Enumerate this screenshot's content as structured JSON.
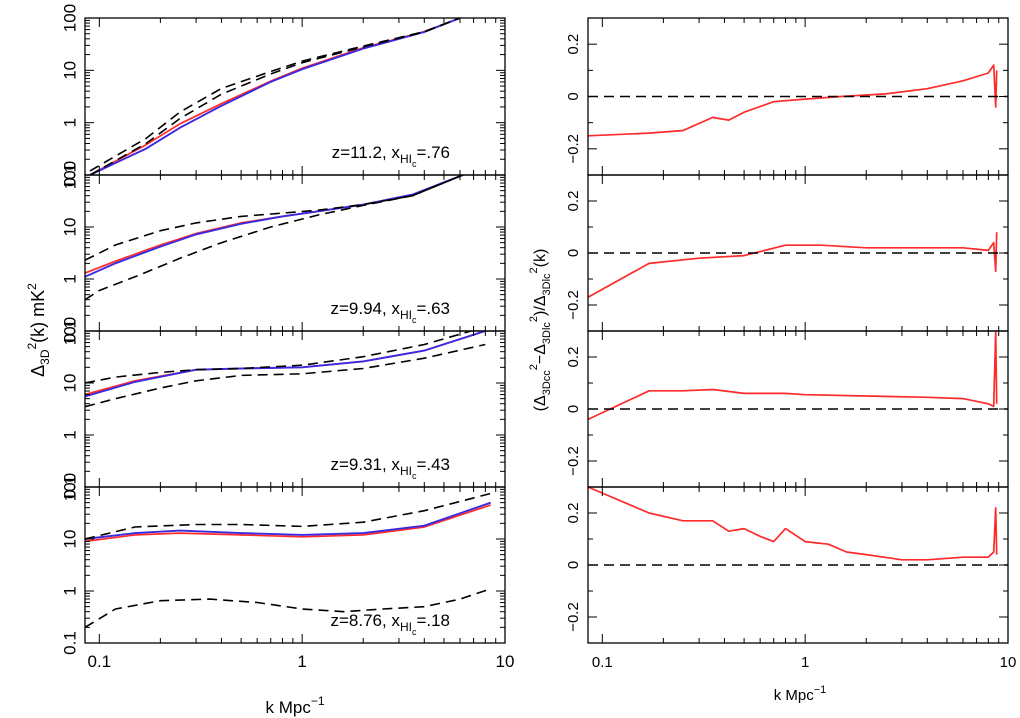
{
  "figure": {
    "xlabel": "k  Mpc",
    "xlabel_exp": "−1",
    "left_ylabel": {
      "a": "Δ",
      "sub1": "3D",
      "sup1": "2",
      "b": "(k)  mK",
      "sup2": "2"
    },
    "right_ylabel": {
      "p1": "(Δ",
      "s1": "3Dcc",
      "e1": "2",
      "p2": "−Δ",
      "s2": "3Dlc",
      "e2": "2",
      "p3": ")/Δ",
      "s3": "3Dlc",
      "e3": "2",
      "p4": "(k)"
    },
    "colors": {
      "red": "#ff2a2a",
      "blue": "#3a2ae0",
      "black": "#000000"
    }
  },
  "chart_data": [
    {
      "type": "line",
      "panel": "left-1",
      "xscale": "log",
      "yscale": "log",
      "xlim": [
        0.085,
        10
      ],
      "ylim": [
        0.1,
        100
      ],
      "x_ticks": [
        "0.1",
        "1",
        "10"
      ],
      "y_ticks": [
        "0.1",
        "1",
        "10",
        "100"
      ],
      "annotation": {
        "z": "z=11.2,  x",
        "sub": "HI",
        "subsub": "c",
        "val": "=.76"
      },
      "series": [
        {
          "name": "red",
          "x": [
            0.09,
            0.17,
            0.25,
            0.4,
            0.7,
            1,
            2,
            4,
            6
          ],
          "y": [
            0.1,
            0.38,
            0.95,
            2.3,
            6.2,
            11,
            27,
            55,
            100
          ]
        },
        {
          "name": "blue",
          "x": [
            0.09,
            0.17,
            0.25,
            0.4,
            0.7,
            1,
            2,
            4,
            6
          ],
          "y": [
            0.1,
            0.32,
            0.8,
            2.1,
            6,
            10.5,
            26,
            54,
            100
          ]
        },
        {
          "name": "dashed-upper",
          "x": [
            0.09,
            0.17,
            0.25,
            0.4,
            0.7,
            1,
            2,
            4,
            6
          ],
          "y": [
            0.12,
            0.5,
            1.6,
            4.5,
            9.5,
            15,
            29,
            55,
            100
          ]
        },
        {
          "name": "dashed-lower",
          "x": [
            0.09,
            0.17,
            0.25,
            0.4,
            0.7,
            1,
            2,
            4,
            6
          ],
          "y": [
            0.1,
            0.4,
            1.2,
            3.5,
            8.5,
            14,
            28,
            54,
            100
          ]
        }
      ]
    },
    {
      "type": "line",
      "panel": "left-2",
      "xscale": "log",
      "yscale": "log",
      "xlim": [
        0.085,
        10
      ],
      "ylim": [
        0.1,
        100
      ],
      "x_ticks": [
        "0.1",
        "1",
        "10"
      ],
      "y_ticks": [
        "0.1",
        "1",
        "10",
        "100"
      ],
      "annotation": {
        "z": "z=9.94,  x",
        "sub": "HI",
        "subsub": "c",
        "val": "=.63"
      },
      "series": [
        {
          "name": "red",
          "x": [
            0.085,
            0.12,
            0.2,
            0.3,
            0.5,
            0.8,
            1.2,
            2,
            3.5,
            6.2
          ],
          "y": [
            1.3,
            2.2,
            4.5,
            7.5,
            12,
            16,
            20,
            27,
            42,
            100
          ]
        },
        {
          "name": "blue",
          "x": [
            0.085,
            0.12,
            0.2,
            0.3,
            0.5,
            0.8,
            1.2,
            2,
            3.5,
            6.2
          ],
          "y": [
            1.1,
            2.0,
            4.2,
            7.2,
            11.5,
            16,
            20,
            27,
            42,
            100
          ]
        },
        {
          "name": "dashed-upper",
          "x": [
            0.085,
            0.12,
            0.2,
            0.3,
            0.5,
            0.8,
            1.2,
            2,
            3.5,
            6.2
          ],
          "y": [
            2.3,
            4.5,
            8.5,
            12,
            16,
            18.5,
            21,
            27,
            40,
            100
          ]
        },
        {
          "name": "dashed-lower",
          "x": [
            0.085,
            0.1,
            0.15,
            0.25,
            0.4,
            0.7,
            1.2,
            2,
            3.5,
            6.2
          ],
          "y": [
            0.4,
            0.6,
            1.1,
            2.5,
            5,
            10,
            17,
            26,
            40,
            100
          ]
        }
      ]
    },
    {
      "type": "line",
      "panel": "left-3",
      "xscale": "log",
      "yscale": "log",
      "xlim": [
        0.085,
        10
      ],
      "ylim": [
        0.1,
        100
      ],
      "x_ticks": [
        "0.1",
        "1",
        "10"
      ],
      "y_ticks": [
        "0.1",
        "1",
        "10",
        "100"
      ],
      "annotation": {
        "z": "z=9.31,  x",
        "sub": "HI",
        "subsub": "c",
        "val": "=.43"
      },
      "series": [
        {
          "name": "red",
          "x": [
            0.085,
            0.15,
            0.3,
            0.5,
            1,
            2,
            4,
            8
          ],
          "y": [
            6,
            11,
            18,
            19,
            20,
            26,
            42,
            100
          ]
        },
        {
          "name": "blue",
          "x": [
            0.085,
            0.15,
            0.3,
            0.5,
            1,
            2,
            4,
            8
          ],
          "y": [
            5.5,
            10.5,
            18,
            19,
            20,
            26,
            42,
            100
          ]
        },
        {
          "name": "dashed-upper",
          "x": [
            0.085,
            0.12,
            0.2,
            0.3,
            0.5,
            1,
            2,
            4,
            8
          ],
          "y": [
            10,
            13,
            16,
            18,
            19,
            22,
            32,
            55,
            120
          ]
        },
        {
          "name": "dashed-lower",
          "x": [
            0.085,
            0.12,
            0.2,
            0.3,
            0.5,
            1,
            2,
            4,
            8
          ],
          "y": [
            3.5,
            5,
            8,
            11,
            14,
            15,
            19,
            30,
            55
          ]
        }
      ]
    },
    {
      "type": "line",
      "panel": "left-4",
      "xscale": "log",
      "yscale": "log",
      "xlim": [
        0.085,
        10
      ],
      "ylim": [
        0.1,
        100
      ],
      "x_ticks": [
        "0.1",
        "1",
        "10"
      ],
      "y_ticks": [
        "0.1",
        "1",
        "10",
        "100"
      ],
      "annotation": {
        "z": "z=8.76,  x",
        "sub": "HI",
        "subsub": "c",
        "val": "=.18"
      },
      "series": [
        {
          "name": "red",
          "x": [
            0.085,
            0.15,
            0.25,
            0.5,
            1,
            2,
            4,
            8.5
          ],
          "y": [
            9,
            12,
            13,
            12,
            11,
            12,
            17,
            45
          ]
        },
        {
          "name": "blue",
          "x": [
            0.085,
            0.15,
            0.25,
            0.5,
            1,
            2,
            4,
            8.5
          ],
          "y": [
            10,
            13,
            14.5,
            13,
            12,
            13,
            18,
            50
          ]
        },
        {
          "name": "dashed-upper",
          "x": [
            0.085,
            0.15,
            0.3,
            0.5,
            1,
            2,
            4,
            8.5
          ],
          "y": [
            10,
            17,
            19,
            19,
            17.5,
            21,
            35,
            75
          ]
        },
        {
          "name": "dashed-lower",
          "x": [
            0.085,
            0.12,
            0.2,
            0.35,
            0.6,
            1,
            1.6,
            2.5,
            4,
            6,
            8.5
          ],
          "y": [
            0.2,
            0.45,
            0.65,
            0.7,
            0.6,
            0.45,
            0.4,
            0.45,
            0.5,
            0.7,
            1.1
          ]
        }
      ]
    },
    {
      "type": "line",
      "panel": "right-1",
      "xscale": "log",
      "xlim": [
        0.085,
        10
      ],
      "ylim": [
        -0.3,
        0.3
      ],
      "x_ticks": [
        "0.1",
        "1",
        "10"
      ],
      "y_ticks": [
        "−0.2",
        "0",
        "0.2"
      ],
      "series": [
        {
          "name": "red",
          "x": [
            0.085,
            0.17,
            0.25,
            0.35,
            0.42,
            0.5,
            0.7,
            1,
            1.5,
            2.5,
            4,
            6,
            8,
            8.5,
            8.7,
            8.8
          ],
          "y": [
            -0.15,
            -0.14,
            -0.13,
            -0.08,
            -0.09,
            -0.06,
            -0.02,
            -0.01,
            0,
            0.01,
            0.03,
            0.06,
            0.09,
            0.12,
            -0.04,
            0.1
          ]
        },
        {
          "name": "zero-dashed",
          "x": [
            0.085,
            10
          ],
          "y": [
            0,
            0
          ]
        }
      ]
    },
    {
      "type": "line",
      "panel": "right-2",
      "xscale": "log",
      "xlim": [
        0.085,
        10
      ],
      "ylim": [
        -0.3,
        0.3
      ],
      "x_ticks": [
        "0.1",
        "1",
        "10"
      ],
      "y_ticks": [
        "−0.2",
        "0",
        "0.2"
      ],
      "series": [
        {
          "name": "red",
          "x": [
            0.085,
            0.17,
            0.3,
            0.5,
            0.8,
            1.2,
            2,
            4,
            6,
            8,
            8.5,
            8.7,
            8.8
          ],
          "y": [
            -0.17,
            -0.04,
            -0.02,
            -0.01,
            0.03,
            0.03,
            0.02,
            0.02,
            0.02,
            0.01,
            0.04,
            -0.07,
            0.08
          ]
        },
        {
          "name": "zero-dashed",
          "x": [
            0.085,
            10
          ],
          "y": [
            0,
            0
          ]
        }
      ]
    },
    {
      "type": "line",
      "panel": "right-3",
      "xscale": "log",
      "xlim": [
        0.085,
        10
      ],
      "ylim": [
        -0.3,
        0.3
      ],
      "x_ticks": [
        "0.1",
        "1",
        "10"
      ],
      "y_ticks": [
        "−0.2",
        "0",
        "0.2"
      ],
      "series": [
        {
          "name": "red",
          "x": [
            0.085,
            0.17,
            0.25,
            0.35,
            0.5,
            0.8,
            1,
            2,
            4,
            6,
            8,
            8.5,
            8.7,
            8.8
          ],
          "y": [
            -0.04,
            0.07,
            0.07,
            0.075,
            0.06,
            0.06,
            0.055,
            0.05,
            0.045,
            0.04,
            0.02,
            0.01,
            0.3,
            0.02
          ]
        },
        {
          "name": "zero-dashed",
          "x": [
            0.085,
            10
          ],
          "y": [
            0,
            0
          ]
        }
      ]
    },
    {
      "type": "line",
      "panel": "right-4",
      "xscale": "log",
      "xlim": [
        0.085,
        10
      ],
      "ylim": [
        -0.3,
        0.3
      ],
      "x_ticks": [
        "0.1",
        "1",
        "10"
      ],
      "y_ticks": [
        "−0.2",
        "0",
        "0.2"
      ],
      "series": [
        {
          "name": "red",
          "x": [
            0.085,
            0.17,
            0.25,
            0.35,
            0.42,
            0.5,
            0.6,
            0.7,
            0.8,
            1,
            1.3,
            1.6,
            2,
            3,
            4,
            6,
            8,
            8.5,
            8.7,
            8.8
          ],
          "y": [
            0.3,
            0.2,
            0.17,
            0.17,
            0.13,
            0.14,
            0.11,
            0.09,
            0.14,
            0.09,
            0.08,
            0.05,
            0.04,
            0.02,
            0.02,
            0.03,
            0.03,
            0.05,
            0.22,
            0.04
          ]
        },
        {
          "name": "zero-dashed",
          "x": [
            0.085,
            10
          ],
          "y": [
            0,
            0
          ]
        }
      ]
    }
  ]
}
